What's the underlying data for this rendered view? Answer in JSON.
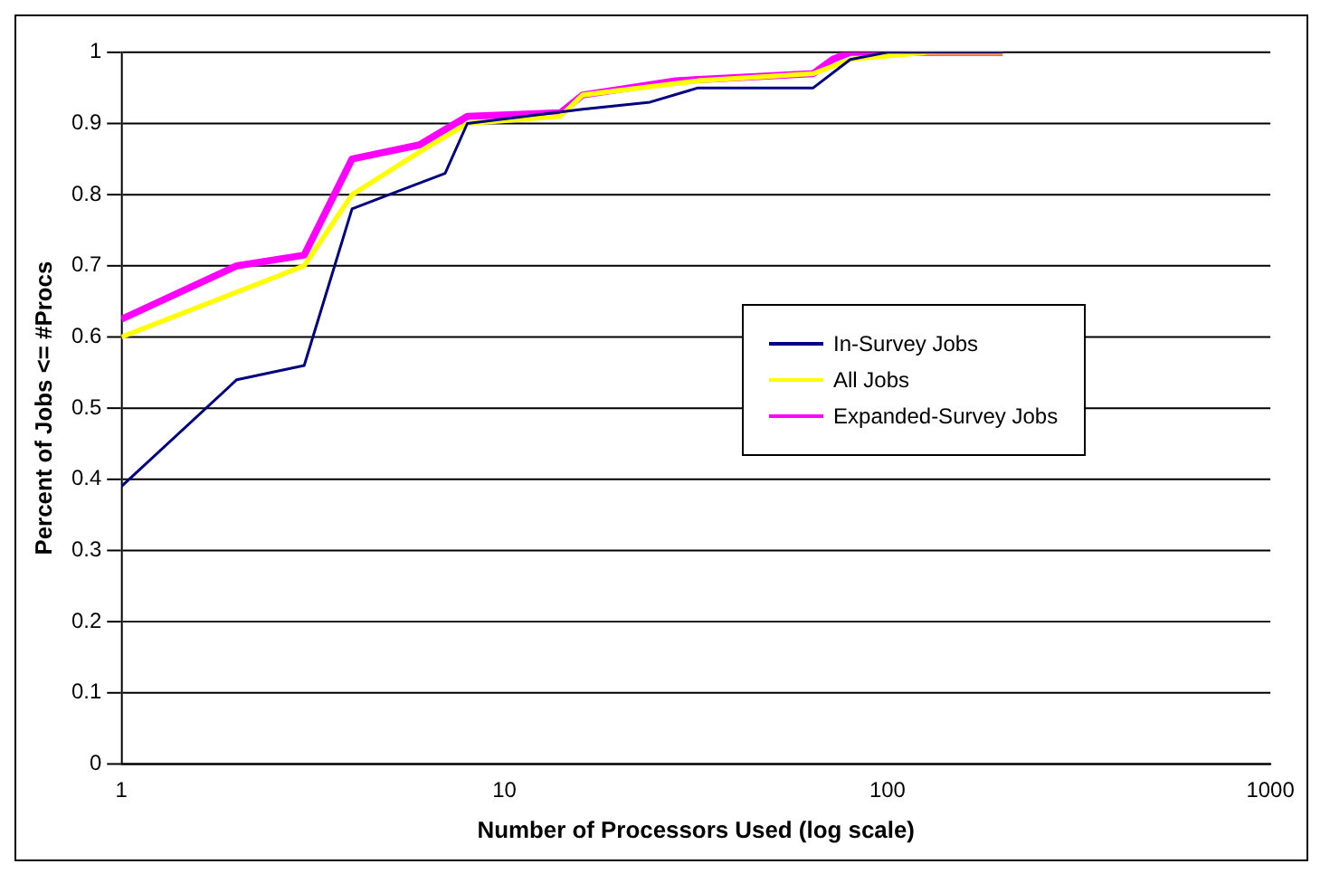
{
  "chart_data": {
    "type": "line",
    "xlabel": "Number of Processors Used (log scale)",
    "ylabel": "Percent of Jobs <= #Procs",
    "log": "x",
    "xlim": [
      1,
      1000
    ],
    "xticks": [
      1,
      10,
      100,
      1000
    ],
    "ylim": [
      0,
      1
    ],
    "yticks": [
      0,
      0.1,
      0.2,
      0.3,
      0.4,
      0.5,
      0.6,
      0.7,
      0.8,
      0.9,
      1
    ],
    "grid": "y",
    "legend": "right",
    "marker": "none",
    "series": [
      {
        "name": "In-Survey Jobs",
        "color": "#000080",
        "x": [
          1,
          2,
          3,
          4,
          5,
          7,
          8,
          16,
          24,
          32,
          64,
          80,
          100,
          200
        ],
        "values": [
          0.39,
          0.54,
          0.56,
          0.78,
          0.8,
          0.83,
          0.9,
          0.92,
          0.93,
          0.95,
          0.95,
          0.99,
          1,
          1
        ]
      },
      {
        "name": "All Jobs",
        "color": "#ffff00",
        "x": [
          1,
          3,
          4,
          6,
          8,
          14,
          16,
          32,
          64,
          80,
          128,
          200
        ],
        "values": [
          0.6,
          0.7,
          0.8,
          0.86,
          0.9,
          0.91,
          0.94,
          0.96,
          0.97,
          0.99,
          1,
          1
        ]
      },
      {
        "name": "Expanded-Survey Jobs",
        "color": "#ff00ff",
        "x": [
          1,
          2,
          3,
          4,
          6,
          8,
          14,
          16,
          28,
          64,
          72,
          80,
          200
        ],
        "values": [
          0.625,
          0.7,
          0.715,
          0.85,
          0.87,
          0.91,
          0.915,
          0.94,
          0.96,
          0.97,
          0.99,
          1,
          1
        ]
      }
    ]
  }
}
